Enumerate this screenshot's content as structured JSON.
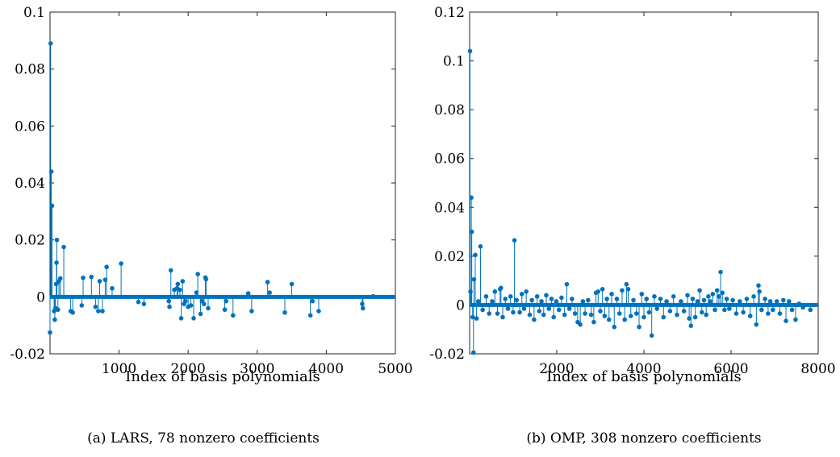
{
  "chart_data": [
    {
      "type": "stem",
      "caption": "(a) LARS, 78 nonzero coefficients",
      "xlabel": "Index of basis polynomials",
      "ylabel": "",
      "xlim": [
        1,
        5000
      ],
      "ylim": [
        -0.02,
        0.1
      ],
      "xticks": [
        1000,
        2000,
        3000,
        4000,
        5000
      ],
      "xtick_labels": [
        "1000",
        "2000",
        "3000",
        "4000",
        "5000"
      ],
      "yticks": [
        -0.02,
        0,
        0.02,
        0.04,
        0.06,
        0.08,
        0.1
      ],
      "ytick_labels": [
        "-0.02",
        "0",
        "0.02",
        "0.04",
        "0.06",
        "0.08",
        "0.1"
      ],
      "grid": false,
      "color": "#0072BD",
      "nonzero_count": 78,
      "points": [
        [
          1,
          -0.0125
        ],
        [
          10,
          0.089
        ],
        [
          20,
          0.044
        ],
        [
          30,
          0.032
        ],
        [
          60,
          -0.005
        ],
        [
          70,
          -0.008
        ],
        [
          80,
          -0.004
        ],
        [
          90,
          0.0045
        ],
        [
          95,
          0.012
        ],
        [
          100,
          0.02
        ],
        [
          115,
          -0.0045
        ],
        [
          130,
          0.0055
        ],
        [
          150,
          0.0065
        ],
        [
          200,
          0.0175
        ],
        [
          300,
          -0.005
        ],
        [
          330,
          -0.0055
        ],
        [
          460,
          -0.003
        ],
        [
          480,
          0.0067
        ],
        [
          600,
          0.007
        ],
        [
          660,
          -0.0035
        ],
        [
          700,
          -0.005
        ],
        [
          720,
          0.0055
        ],
        [
          760,
          -0.005
        ],
        [
          800,
          0.006
        ],
        [
          820,
          0.0105
        ],
        [
          900,
          0.003
        ],
        [
          1030,
          0.0117
        ],
        [
          1280,
          -0.0018
        ],
        [
          1360,
          -0.0025
        ],
        [
          1720,
          -0.0015
        ],
        [
          1730,
          -0.0035
        ],
        [
          1750,
          0.0093
        ],
        [
          1800,
          0.0025
        ],
        [
          1840,
          0.003
        ],
        [
          1850,
          0.0045
        ],
        [
          1880,
          0.0025
        ],
        [
          1900,
          -0.0075
        ],
        [
          1920,
          0.0055
        ],
        [
          1940,
          -0.0025
        ],
        [
          1960,
          -0.0015
        ],
        [
          2000,
          -0.0035
        ],
        [
          2040,
          -0.003
        ],
        [
          2080,
          -0.0075
        ],
        [
          2120,
          0.0015
        ],
        [
          2140,
          0.008
        ],
        [
          2180,
          -0.006
        ],
        [
          2200,
          -0.0015
        ],
        [
          2230,
          -0.0025
        ],
        [
          2250,
          0.0068
        ],
        [
          2260,
          0.0062
        ],
        [
          2290,
          -0.004
        ],
        [
          2530,
          -0.0045
        ],
        [
          2550,
          -0.0015
        ],
        [
          2650,
          -0.0065
        ],
        [
          2870,
          0.0012
        ],
        [
          2920,
          -0.005
        ],
        [
          3150,
          0.0052
        ],
        [
          3180,
          0.0015
        ],
        [
          3400,
          -0.0055
        ],
        [
          3500,
          0.0045
        ],
        [
          3770,
          -0.0065
        ],
        [
          3800,
          -0.0015
        ],
        [
          3890,
          -0.005
        ],
        [
          4520,
          -0.0025
        ],
        [
          4530,
          -0.004
        ],
        [
          4680,
          0.0002
        ]
      ]
    },
    {
      "type": "stem",
      "caption": "(b) OMP, 308 nonzero coefficients",
      "xlabel": "Index of basis polynomials",
      "ylabel": "",
      "xlim": [
        1,
        8000
      ],
      "ylim": [
        -0.02,
        0.12
      ],
      "xticks": [
        2000,
        4000,
        6000,
        8000
      ],
      "xtick_labels": [
        "2000",
        "4000",
        "6000",
        "8000"
      ],
      "yticks": [
        -0.02,
        0,
        0.02,
        0.04,
        0.06,
        0.08,
        0.1,
        0.12
      ],
      "ytick_labels": [
        "-0.02",
        "0",
        "0.02",
        "0.04",
        "0.06",
        "0.08",
        "0.1",
        "0.12"
      ],
      "grid": false,
      "color": "#0072BD",
      "nonzero_count": 308,
      "points": [
        [
          10,
          0.104
        ],
        [
          20,
          0.0055
        ],
        [
          40,
          0.044
        ],
        [
          50,
          0.03
        ],
        [
          70,
          -0.005
        ],
        [
          90,
          -0.0195
        ],
        [
          100,
          0.0105
        ],
        [
          130,
          0.0205
        ],
        [
          160,
          -0.0055
        ],
        [
          200,
          0.0015
        ],
        [
          250,
          0.024
        ],
        [
          300,
          -0.002
        ],
        [
          380,
          0.0035
        ],
        [
          450,
          -0.0035
        ],
        [
          520,
          0.0015
        ],
        [
          580,
          0.0055
        ],
        [
          640,
          -0.0035
        ],
        [
          700,
          0.0065
        ],
        [
          720,
          0.007
        ],
        [
          760,
          -0.005
        ],
        [
          820,
          0.0025
        ],
        [
          880,
          -0.0015
        ],
        [
          940,
          0.0035
        ],
        [
          1000,
          -0.003
        ],
        [
          1030,
          0.0265
        ],
        [
          1080,
          0.002
        ],
        [
          1150,
          -0.003
        ],
        [
          1200,
          0.0045
        ],
        [
          1250,
          -0.0015
        ],
        [
          1300,
          0.0055
        ],
        [
          1380,
          -0.004
        ],
        [
          1430,
          0.002
        ],
        [
          1480,
          -0.006
        ],
        [
          1550,
          0.0035
        ],
        [
          1600,
          -0.0025
        ],
        [
          1650,
          0.0015
        ],
        [
          1700,
          -0.004
        ],
        [
          1760,
          0.004
        ],
        [
          1820,
          -0.0015
        ],
        [
          1880,
          0.0025
        ],
        [
          1930,
          -0.005
        ],
        [
          1990,
          0.0015
        ],
        [
          2050,
          -0.002
        ],
        [
          2110,
          0.003
        ],
        [
          2180,
          -0.004
        ],
        [
          2230,
          0.0085
        ],
        [
          2290,
          -0.0015
        ],
        [
          2350,
          0.0025
        ],
        [
          2420,
          -0.0035
        ],
        [
          2480,
          -0.007
        ],
        [
          2540,
          -0.008
        ],
        [
          2600,
          0.0015
        ],
        [
          2650,
          -0.0035
        ],
        [
          2720,
          0.002
        ],
        [
          2790,
          -0.004
        ],
        [
          2850,
          -0.007
        ],
        [
          2900,
          0.005
        ],
        [
          2950,
          0.0055
        ],
        [
          3000,
          -0.0025
        ],
        [
          3050,
          0.0065
        ],
        [
          3100,
          -0.0045
        ],
        [
          3150,
          0.0025
        ],
        [
          3200,
          -0.006
        ],
        [
          3260,
          0.0045
        ],
        [
          3320,
          -0.009
        ],
        [
          3380,
          0.0025
        ],
        [
          3440,
          -0.0035
        ],
        [
          3500,
          0.006
        ],
        [
          3560,
          -0.006
        ],
        [
          3600,
          0.0085
        ],
        [
          3640,
          0.0065
        ],
        [
          3700,
          -0.0045
        ],
        [
          3760,
          0.002
        ],
        [
          3830,
          -0.0035
        ],
        [
          3890,
          -0.009
        ],
        [
          3950,
          0.0045
        ],
        [
          4000,
          -0.005
        ],
        [
          4060,
          0.0025
        ],
        [
          4120,
          -0.003
        ],
        [
          4180,
          -0.0125
        ],
        [
          4240,
          0.0035
        ],
        [
          4300,
          -0.0015
        ],
        [
          4380,
          0.0025
        ],
        [
          4450,
          -0.005
        ],
        [
          4520,
          0.0015
        ],
        [
          4600,
          -0.0025
        ],
        [
          4680,
          0.0035
        ],
        [
          4760,
          -0.004
        ],
        [
          4850,
          0.0015
        ],
        [
          4920,
          -0.0025
        ],
        [
          5000,
          0.004
        ],
        [
          5040,
          -0.0055
        ],
        [
          5080,
          -0.0085
        ],
        [
          5120,
          0.0025
        ],
        [
          5180,
          -0.005
        ],
        [
          5230,
          0.0015
        ],
        [
          5280,
          0.006
        ],
        [
          5330,
          -0.003
        ],
        [
          5380,
          0.002
        ],
        [
          5430,
          -0.004
        ],
        [
          5480,
          0.0035
        ],
        [
          5520,
          0.0015
        ],
        [
          5580,
          0.0045
        ],
        [
          5630,
          -0.002
        ],
        [
          5680,
          0.006
        ],
        [
          5720,
          0.0035
        ],
        [
          5760,
          0.0135
        ],
        [
          5800,
          0.005
        ],
        [
          5850,
          -0.002
        ],
        [
          5900,
          0.0025
        ],
        [
          5960,
          -0.0015
        ],
        [
          6040,
          0.002
        ],
        [
          6120,
          -0.0035
        ],
        [
          6200,
          0.0015
        ],
        [
          6280,
          -0.003
        ],
        [
          6360,
          0.0025
        ],
        [
          6440,
          -0.0045
        ],
        [
          6520,
          0.0035
        ],
        [
          6580,
          -0.008
        ],
        [
          6630,
          0.008
        ],
        [
          6650,
          0.0055
        ],
        [
          6700,
          -0.002
        ],
        [
          6780,
          0.0025
        ],
        [
          6850,
          -0.0035
        ],
        [
          6900,
          0.0015
        ],
        [
          6960,
          -0.002
        ],
        [
          7050,
          0.0015
        ],
        [
          7120,
          -0.0035
        ],
        [
          7200,
          0.002
        ],
        [
          7260,
          -0.0065
        ],
        [
          7330,
          0.0015
        ],
        [
          7400,
          -0.002
        ],
        [
          7480,
          -0.006
        ],
        [
          7560,
          0.0005
        ],
        [
          7650,
          -0.001
        ],
        [
          7820,
          -0.002
        ]
      ]
    }
  ]
}
